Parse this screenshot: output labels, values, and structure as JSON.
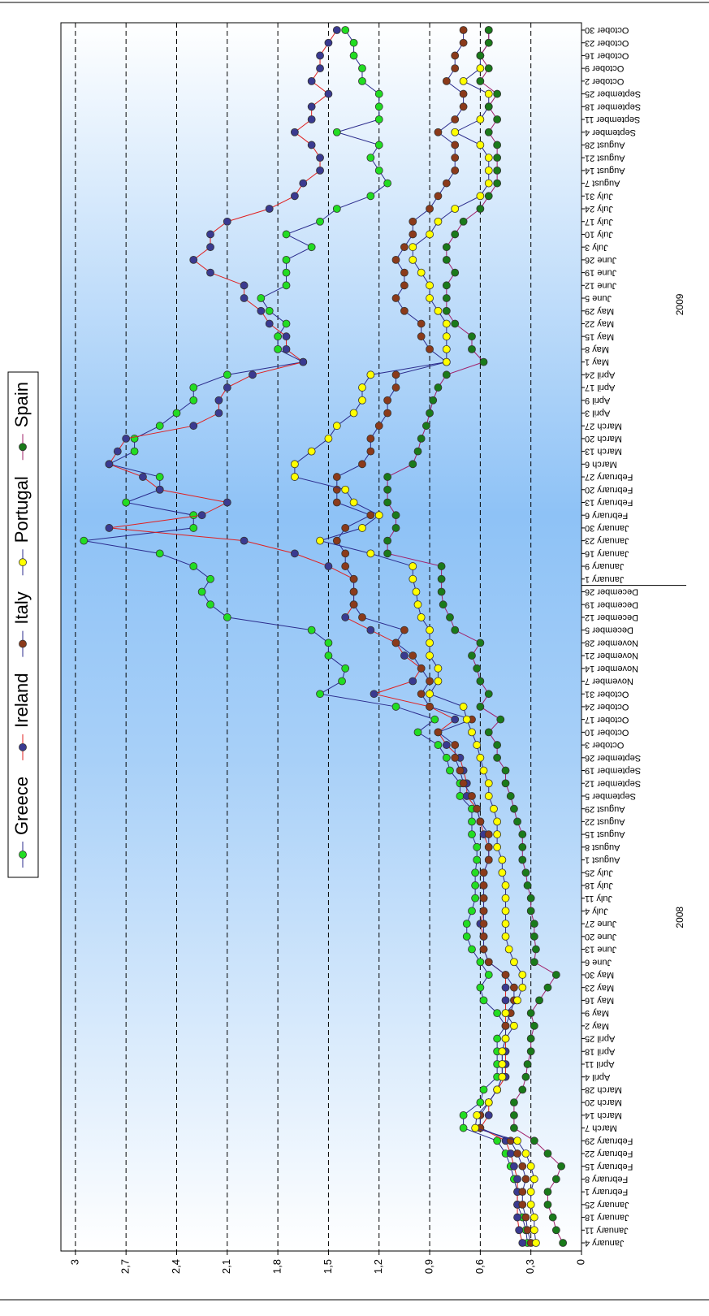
{
  "chart_data": {
    "type": "line",
    "category_groups": [
      {
        "name": "2008",
        "categories": [
          "January 4",
          "January 11",
          "January 18",
          "January 25",
          "February 1",
          "February 8",
          "February 15",
          "February 22",
          "February 29",
          "March 7",
          "March 14",
          "March 20",
          "March 28",
          "April 4",
          "April 11",
          "April 18",
          "April 25",
          "May 2",
          "May 9",
          "May 16",
          "May 23",
          "May 30",
          "June 6",
          "June 13",
          "June 20",
          "June 27",
          "July 4",
          "July 11",
          "July 18",
          "July 25",
          "August 1",
          "August 8",
          "August 15",
          "August 22",
          "August 29",
          "September 5",
          "September 12",
          "September 19",
          "September 26",
          "October 3",
          "October 10",
          "October 17",
          "October 24",
          "October 31",
          "November 7",
          "November 14",
          "November 21",
          "November 28",
          "December 5",
          "December 12",
          "December 19",
          "December 26"
        ]
      },
      {
        "name": "2009",
        "categories": [
          "January 1",
          "January 9",
          "January 16",
          "January 23",
          "January 30",
          "February 6",
          "February 13",
          "February 20",
          "February 27",
          "March 6",
          "March 13",
          "March 20",
          "March 27",
          "April 3",
          "April 9",
          "April 17",
          "April 24",
          "May 1",
          "May 8",
          "May 15",
          "May 22",
          "May 29",
          "June 5",
          "June 12",
          "June 19",
          "June 26",
          "July 3",
          "July 10",
          "July 17",
          "July 24",
          "July 31",
          "August 7",
          "August 14",
          "August 21",
          "August 28",
          "September 4",
          "September 11",
          "September 18",
          "September 25",
          "October 2",
          "October 9",
          "October 16",
          "October 23",
          "October 30"
        ]
      }
    ],
    "series": [
      {
        "name": "Greece",
        "color": "#2b2b8c",
        "marker_color": "#22dd22",
        "values": [
          0.32,
          0.33,
          0.35,
          0.38,
          0.38,
          0.4,
          0.42,
          0.45,
          0.5,
          0.7,
          0.7,
          0.6,
          0.58,
          0.5,
          0.5,
          0.5,
          0.5,
          0.45,
          0.5,
          0.58,
          0.6,
          0.55,
          0.6,
          0.65,
          0.68,
          0.68,
          0.65,
          0.63,
          0.63,
          0.63,
          0.62,
          0.62,
          0.65,
          0.65,
          0.65,
          0.72,
          0.72,
          0.78,
          0.8,
          0.85,
          0.97,
          0.87,
          1.1,
          1.55,
          1.42,
          1.4,
          1.5,
          1.5,
          1.6,
          2.1,
          2.2,
          2.25,
          2.2,
          2.3,
          2.5,
          2.95,
          2.3,
          2.3,
          2.7,
          2.5,
          2.5,
          2.8,
          2.65,
          2.65,
          2.5,
          2.4,
          2.3,
          2.3,
          2.1,
          1.65,
          1.8,
          1.8,
          1.75,
          1.85,
          1.9,
          1.75,
          1.75,
          1.75,
          1.6,
          1.75,
          1.55,
          1.45,
          1.25,
          1.15,
          1.2,
          1.25,
          1.2,
          1.45,
          1.2,
          1.2,
          1.2,
          1.3,
          1.3,
          1.35,
          1.35,
          1.4
        ]
      },
      {
        "name": "Ireland",
        "color": "#e02020",
        "marker_color": "#3a3a90",
        "values": [
          0.35,
          0.37,
          0.38,
          0.38,
          0.38,
          0.38,
          0.4,
          0.42,
          0.45,
          0.6,
          0.55,
          0.55,
          0.5,
          0.45,
          0.45,
          0.45,
          0.45,
          0.45,
          0.45,
          0.45,
          0.45,
          0.45,
          0.55,
          0.58,
          0.58,
          0.6,
          0.58,
          0.58,
          0.58,
          0.58,
          0.55,
          0.55,
          0.58,
          0.6,
          0.62,
          0.68,
          0.68,
          0.7,
          0.72,
          0.8,
          0.85,
          0.75,
          0.9,
          1.23,
          1.0,
          0.95,
          1.05,
          1.1,
          1.25,
          1.4,
          1.35,
          1.35,
          1.35,
          1.5,
          1.7,
          2.0,
          2.8,
          2.25,
          2.1,
          2.5,
          2.6,
          2.8,
          2.75,
          2.7,
          2.3,
          2.15,
          2.15,
          2.1,
          1.95,
          1.65,
          1.75,
          1.75,
          1.85,
          1.9,
          2.0,
          2.0,
          2.2,
          2.3,
          2.2,
          2.2,
          2.1,
          1.85,
          1.7,
          1.65,
          1.55,
          1.55,
          1.6,
          1.7,
          1.6,
          1.6,
          1.5,
          1.6,
          1.55,
          1.55,
          1.5,
          1.45
        ]
      },
      {
        "name": "Italy",
        "color": "#2b2b8c",
        "marker_color": "#8b3a1a",
        "values": [
          0.3,
          0.32,
          0.33,
          0.35,
          0.35,
          0.33,
          0.35,
          0.38,
          0.42,
          0.6,
          0.6,
          0.55,
          0.5,
          0.47,
          0.47,
          0.47,
          0.45,
          0.45,
          0.42,
          0.4,
          0.4,
          0.45,
          0.55,
          0.58,
          0.58,
          0.58,
          0.58,
          0.58,
          0.58,
          0.58,
          0.55,
          0.55,
          0.55,
          0.6,
          0.62,
          0.65,
          0.7,
          0.72,
          0.75,
          0.75,
          0.85,
          0.65,
          0.9,
          0.95,
          0.9,
          0.95,
          1.0,
          1.1,
          1.05,
          1.3,
          1.35,
          1.35,
          1.35,
          1.4,
          1.4,
          1.45,
          1.4,
          1.25,
          1.45,
          1.45,
          1.45,
          1.3,
          1.25,
          1.25,
          1.2,
          1.15,
          1.15,
          1.1,
          1.1,
          0.8,
          0.9,
          0.95,
          0.95,
          1.05,
          1.1,
          1.05,
          1.05,
          1.1,
          1.05,
          1.0,
          1.0,
          0.9,
          0.85,
          0.8,
          0.75,
          0.75,
          0.75,
          0.85,
          0.75,
          0.7,
          0.7,
          0.8,
          0.75,
          0.75,
          0.7,
          0.7
        ]
      },
      {
        "name": "Portugal",
        "color": "#2b2b8c",
        "marker_color": "#ffff00",
        "values": [
          0.27,
          0.28,
          0.28,
          0.3,
          0.3,
          0.28,
          0.3,
          0.33,
          0.38,
          0.63,
          0.62,
          0.55,
          0.5,
          0.47,
          0.47,
          0.47,
          0.45,
          0.4,
          0.45,
          0.38,
          0.35,
          0.35,
          0.4,
          0.43,
          0.45,
          0.45,
          0.45,
          0.45,
          0.45,
          0.47,
          0.47,
          0.5,
          0.5,
          0.5,
          0.52,
          0.55,
          0.55,
          0.58,
          0.6,
          0.62,
          0.65,
          0.68,
          0.7,
          0.9,
          0.85,
          0.85,
          0.9,
          0.9,
          0.9,
          0.95,
          0.97,
          0.98,
          1.0,
          1.0,
          1.25,
          1.55,
          1.3,
          1.2,
          1.35,
          1.4,
          1.7,
          1.7,
          1.6,
          1.5,
          1.45,
          1.35,
          1.3,
          1.3,
          1.25,
          0.8,
          0.8,
          0.8,
          0.8,
          0.85,
          0.9,
          0.9,
          0.95,
          1.0,
          1.0,
          0.9,
          0.85,
          0.75,
          0.6,
          0.55,
          0.55,
          0.55,
          0.6,
          0.75,
          0.6,
          0.55,
          0.55,
          0.7,
          0.6,
          0.6,
          0.55,
          0.55
        ]
      },
      {
        "name": "Spain",
        "color": "#a0206a",
        "marker_color": "#1a7a1a",
        "values": [
          0.11,
          0.15,
          0.17,
          0.2,
          0.2,
          0.15,
          0.12,
          0.2,
          0.28,
          0.4,
          0.4,
          0.4,
          0.35,
          0.33,
          0.32,
          0.3,
          0.3,
          0.28,
          0.3,
          0.25,
          0.2,
          0.15,
          0.28,
          0.27,
          0.28,
          0.28,
          0.3,
          0.3,
          0.32,
          0.33,
          0.35,
          0.35,
          0.35,
          0.38,
          0.4,
          0.42,
          0.45,
          0.45,
          0.5,
          0.5,
          0.55,
          0.48,
          0.6,
          0.55,
          0.6,
          0.62,
          0.65,
          0.6,
          0.75,
          0.78,
          0.82,
          0.83,
          0.83,
          0.83,
          1.15,
          1.15,
          1.1,
          1.1,
          1.15,
          1.15,
          1.15,
          1.0,
          0.97,
          0.95,
          0.92,
          0.9,
          0.88,
          0.85,
          0.8,
          0.58,
          0.65,
          0.65,
          0.75,
          0.8,
          0.8,
          0.8,
          0.75,
          0.8,
          0.8,
          0.75,
          0.7,
          0.6,
          0.55,
          0.5,
          0.5,
          0.5,
          0.5,
          0.55,
          0.5,
          0.55,
          0.5,
          0.6,
          0.55,
          0.6,
          0.55,
          0.55
        ]
      }
    ],
    "ylim": [
      0,
      3.086
    ],
    "yticks": [
      0,
      {
        "value": 0.3,
        "label": "0,3"
      },
      {
        "value": 0.6,
        "label": "0,6"
      },
      {
        "value": 0.9,
        "label": "0,9"
      },
      {
        "value": 1.2,
        "label": "1,2"
      },
      {
        "value": 1.5,
        "label": "1,5"
      },
      {
        "value": 1.8,
        "label": "1,8"
      },
      {
        "value": 2.1,
        "label": "2,1"
      },
      {
        "value": 2.4,
        "label": "2,4"
      },
      {
        "value": 2.7,
        "label": "2,7"
      },
      3
    ],
    "grid": true
  }
}
